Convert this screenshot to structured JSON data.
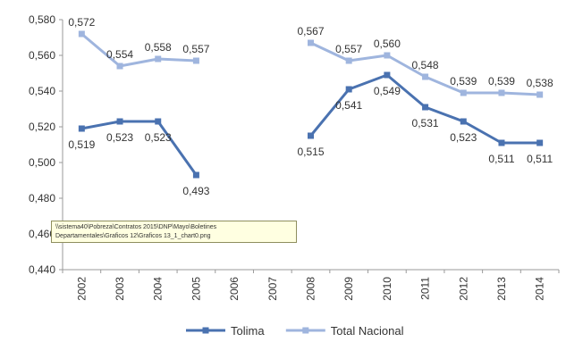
{
  "chart_data": {
    "type": "line",
    "title": "",
    "xlabel": "",
    "ylabel": "",
    "categories": [
      "2002",
      "2003",
      "2004",
      "2005",
      "2006",
      "2007",
      "2008",
      "2009",
      "2010",
      "2011",
      "2012",
      "2013",
      "2014"
    ],
    "ylim": [
      0.44,
      0.58
    ],
    "y_ticks": [
      "0,440",
      "0,460",
      "0,480",
      "0,500",
      "0,520",
      "0,540",
      "0,560",
      "0,580"
    ],
    "grid": false,
    "legend": "bottom",
    "series": [
      {
        "name": "Tolima",
        "color": "#4a72b0",
        "values": [
          0.519,
          0.523,
          0.523,
          0.493,
          null,
          null,
          0.515,
          0.541,
          0.549,
          0.531,
          0.523,
          0.511,
          0.511
        ],
        "labels": [
          "0,519",
          "0,523",
          "0,523",
          "0,493",
          null,
          null,
          "0,515",
          "0,541",
          "0,549",
          "0,531",
          "0,523",
          "0,511",
          "0,511"
        ]
      },
      {
        "name": "Total Nacional",
        "color": "#9fb5de",
        "values": [
          0.572,
          0.554,
          0.558,
          0.557,
          null,
          null,
          0.567,
          0.557,
          0.56,
          0.548,
          0.539,
          0.539,
          0.538
        ],
        "labels": [
          "0,572",
          "0,554",
          "0,558",
          "0,557",
          null,
          null,
          "0,567",
          "0,557",
          "0,560",
          "0,548",
          "0,539",
          "0,539",
          "0,538"
        ]
      }
    ]
  },
  "tooltip": {
    "line1": "\\\\sistema40\\Pobreza\\Contratos 2015\\DNP\\Mayo\\Boletines",
    "line2": "Departamentales\\Graficos 12\\Graficos 13_1_chart0.png"
  }
}
